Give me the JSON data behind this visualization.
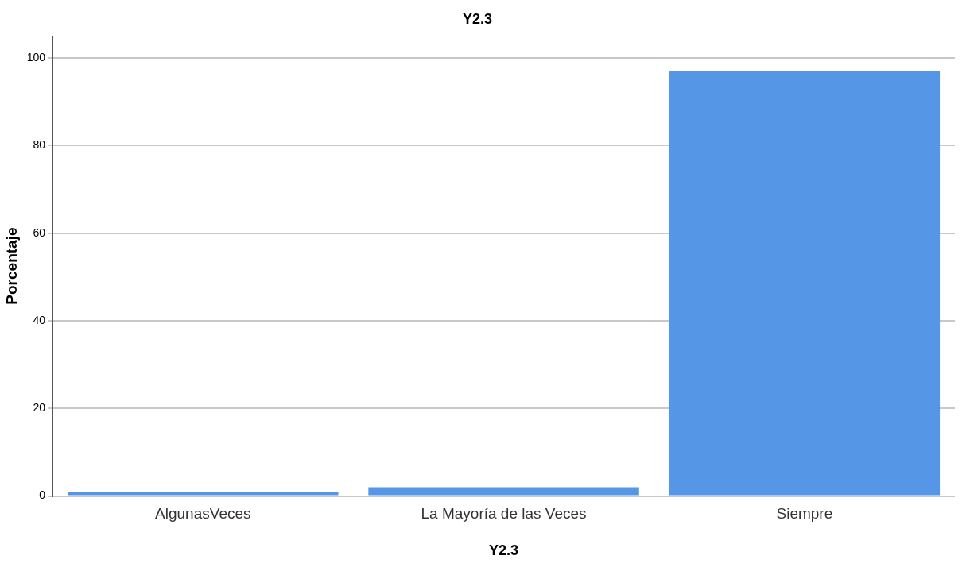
{
  "chart_data": {
    "type": "bar",
    "title": "Y2.3",
    "xlabel": "Y2.3",
    "ylabel": "Porcentaje",
    "categories": [
      "AlgunasVeces",
      "La Mayoría de las Veces",
      "Siempre"
    ],
    "values": [
      1,
      2,
      97
    ],
    "color": "#5596e6",
    "ylim": [
      0,
      105
    ],
    "yticks": [
      0,
      20,
      40,
      60,
      80,
      100
    ],
    "grid": "y",
    "legend": false
  }
}
